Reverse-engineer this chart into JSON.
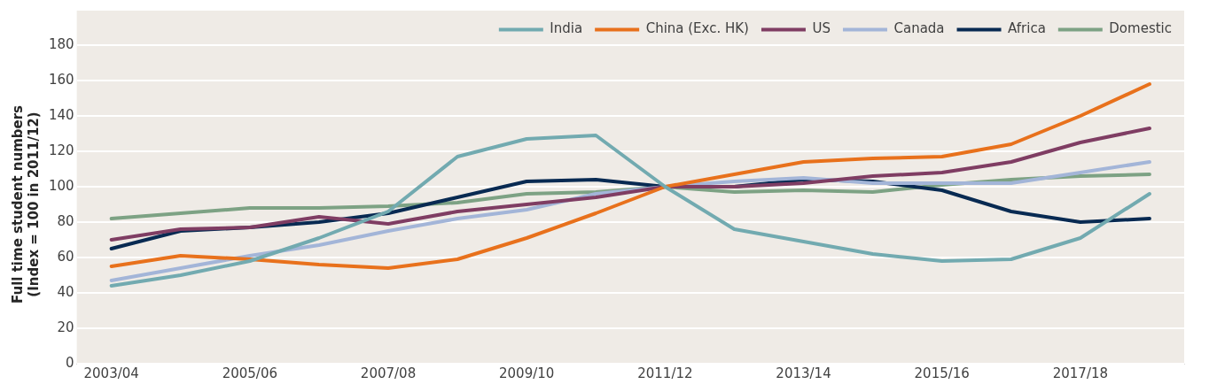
{
  "chart_data": {
    "type": "line",
    "ylabel": "Full time student numbers\n(Index = 100 in 2011/12)",
    "categories": [
      "2003/04",
      null,
      "2005/06",
      null,
      "2007/08",
      null,
      "2009/10",
      null,
      "2011/12",
      null,
      "2013/14",
      null,
      "2015/16",
      null,
      "2017/18",
      null
    ],
    "ylim": [
      0,
      180
    ],
    "yticks": [
      0,
      20,
      40,
      60,
      80,
      100,
      120,
      140,
      160,
      180
    ],
    "grid": "y",
    "legend": "top",
    "marker": "none",
    "line_style": "solid",
    "series": [
      {
        "name": "India",
        "color": "#72aab0",
        "values": [
          44,
          50,
          58,
          71,
          86,
          117,
          127,
          129,
          100,
          76,
          69,
          62,
          58,
          59,
          71,
          96
        ]
      },
      {
        "name": "China (Exc. HK)",
        "color": "#e8711c",
        "values": [
          55,
          61,
          59,
          56,
          54,
          59,
          71,
          85,
          100,
          107,
          114,
          116,
          117,
          124,
          140,
          158
        ]
      },
      {
        "name": "US",
        "color": "#7f3d63",
        "values": [
          70,
          76,
          77,
          83,
          79,
          86,
          90,
          94,
          100,
          100,
          102,
          106,
          108,
          114,
          125,
          133
        ]
      },
      {
        "name": "Canada",
        "color": "#a3b5d8",
        "values": [
          47,
          54,
          61,
          67,
          75,
          82,
          87,
          96,
          100,
          103,
          105,
          102,
          102,
          102,
          108,
          114
        ]
      },
      {
        "name": "Africa",
        "color": "#082a52",
        "values": [
          65,
          75,
          77,
          80,
          85,
          94,
          103,
          104,
          100,
          100,
          104,
          103,
          98,
          86,
          80,
          82
        ]
      },
      {
        "name": "Domestic",
        "color": "#7da284",
        "values": [
          82,
          85,
          88,
          88,
          89,
          91,
          96,
          97,
          100,
          97,
          98,
          97,
          101,
          104,
          106,
          107
        ]
      }
    ]
  }
}
